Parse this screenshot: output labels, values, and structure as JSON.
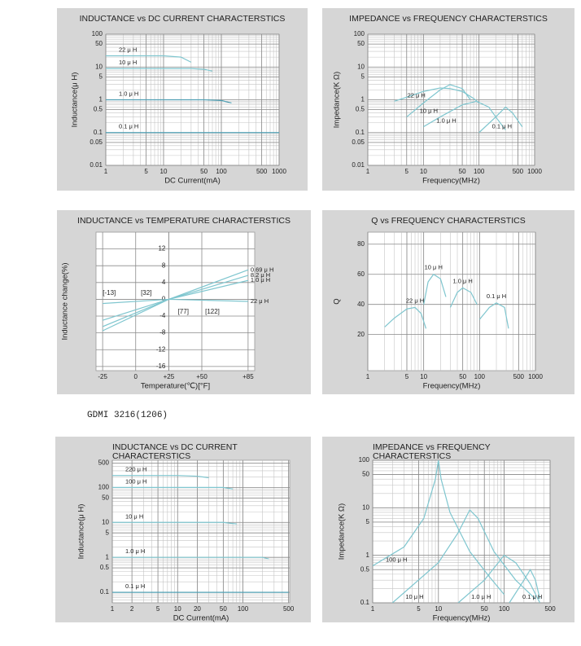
{
  "caption": "GDMI 3216(1206)",
  "chart_data": [
    {
      "type": "line",
      "title": "INDUCTANCE vs DC CURRENT CHARACTERSTICS",
      "xlabel": "DC Current(mA)",
      "ylabel": "Inductance(μ H)",
      "xscale": "log",
      "yscale": "log",
      "xlim": [
        1,
        1000
      ],
      "ylim": [
        0.01,
        100
      ],
      "xticks": [
        1,
        5,
        10,
        50,
        100,
        500,
        1000
      ],
      "yticks": [
        0.01,
        0.05,
        0.1,
        0.5,
        1,
        5,
        10,
        50,
        100
      ],
      "grid": true,
      "legend": "line-start",
      "series": [
        {
          "name": "22 μ H",
          "color": "#7fc6cf",
          "x": [
            1,
            5,
            10,
            20,
            30
          ],
          "values": [
            22,
            22,
            22,
            20,
            14
          ]
        },
        {
          "name": "10 μ H",
          "color": "#7fc6cf",
          "x": [
            1,
            10,
            30,
            50,
            70
          ],
          "values": [
            9,
            9,
            9,
            8.5,
            7.5
          ]
        },
        {
          "name": "1.0 μ H",
          "color": "#4f9fb3",
          "x": [
            1,
            50,
            100,
            150
          ],
          "values": [
            1,
            1,
            0.95,
            0.8
          ]
        },
        {
          "name": "0.1 μ H",
          "color": "#4f9fb3",
          "x": [
            1,
            1000
          ],
          "values": [
            0.1,
            0.1
          ]
        }
      ]
    },
    {
      "type": "line",
      "title": "IMPEDANCE vs FREQUENCY CHARACTERSTICS",
      "xlabel": "Frequency(MHz)",
      "ylabel": "Impedance(K Ω)",
      "xscale": "log",
      "yscale": "log",
      "xlim": [
        1,
        1000
      ],
      "ylim": [
        0.01,
        100
      ],
      "xticks": [
        1,
        5,
        10,
        50,
        100,
        500,
        1000
      ],
      "yticks": [
        0.01,
        0.05,
        0.1,
        0.5,
        1,
        5,
        10,
        50,
        100
      ],
      "grid": true,
      "legend": "line-start",
      "series": [
        {
          "name": "22 μ H",
          "color": "#7fc6cf",
          "x": [
            3,
            5,
            10,
            20,
            30,
            50,
            80,
            100
          ],
          "values": [
            0.9,
            1.2,
            1.8,
            2.3,
            2.2,
            1.8,
            1.1,
            0.8
          ]
        },
        {
          "name": "10 μ H",
          "color": "#7fc6cf",
          "x": [
            5,
            10,
            20,
            30,
            50,
            70
          ],
          "values": [
            0.3,
            0.8,
            2,
            2.9,
            2.2,
            1
          ]
        },
        {
          "name": "1.0 μ H",
          "color": "#7fc6cf",
          "x": [
            10,
            20,
            50,
            90,
            150,
            200,
            300
          ],
          "values": [
            0.15,
            0.3,
            0.7,
            0.9,
            0.6,
            0.3,
            0.12
          ]
        },
        {
          "name": "0.1 μ H",
          "color": "#7fc6cf",
          "x": [
            100,
            200,
            300,
            400,
            600
          ],
          "values": [
            0.1,
            0.3,
            0.6,
            0.4,
            0.15
          ]
        }
      ]
    },
    {
      "type": "line",
      "title": "INDUCTANCE vs TEMPERATURE CHARACTERSTICS",
      "xlabel": "Temperature(℃)[°F]",
      "ylabel": "Inductance change(%)",
      "xscale": "linear",
      "yscale": "linear",
      "xlim": [
        -30,
        90
      ],
      "ylim": [
        -17,
        16
      ],
      "xticks": [
        -25,
        0,
        {
          "value": 25,
          "label": "+25"
        },
        {
          "value": 50,
          "label": "+50"
        },
        {
          "value": 85,
          "label": "+85"
        }
      ],
      "yticks": [
        12,
        8,
        4,
        0,
        -4,
        -8,
        -12,
        -16
      ],
      "grid": true,
      "legend": "line-end",
      "annotations": [
        {
          "text": "[-13]",
          "x": -20,
          "y": 1.5
        },
        {
          "text": "[32]",
          "x": 8,
          "y": 1.5
        },
        {
          "text": "[77]",
          "x": 36,
          "y": -3
        },
        {
          "text": "[122]",
          "x": 58,
          "y": -3
        }
      ],
      "series": [
        {
          "name": "0.69 μ H",
          "color": "#7fc6cf",
          "x": [
            -25,
            25,
            85
          ],
          "values": [
            -7.5,
            0,
            7
          ]
        },
        {
          "name": "8.2 μ H",
          "color": "#7fc6cf",
          "x": [
            -25,
            25,
            85
          ],
          "values": [
            -6.5,
            0,
            5.7
          ]
        },
        {
          "name": "1.0 μ H",
          "color": "#7fc6cf",
          "x": [
            -25,
            25,
            85
          ],
          "values": [
            -5,
            0,
            4.5
          ]
        },
        {
          "name": "22 μ H",
          "color": "#7fc6cf",
          "x": [
            -25,
            25,
            85
          ],
          "values": [
            -1,
            0,
            -0.5
          ]
        }
      ]
    },
    {
      "type": "line",
      "title": "Q vs FREQUENCY CHARACTERSTICS",
      "xlabel": "Frequency(MHz)",
      "ylabel": "Q",
      "xscale": "log",
      "yscale": "linear",
      "xlim": [
        1,
        1000
      ],
      "ylim": [
        -4,
        88
      ],
      "xticks": [
        1,
        5,
        10,
        50,
        100,
        500,
        1000
      ],
      "yticks": [
        20,
        40,
        60,
        80
      ],
      "grid": true,
      "legend": "peak",
      "series": [
        {
          "name": "22 μ H",
          "color": "#7fc6cf",
          "x": [
            2,
            3,
            5,
            7,
            9,
            11
          ],
          "values": [
            25,
            31,
            37,
            38,
            34,
            24
          ]
        },
        {
          "name": "10 μ H",
          "color": "#7fc6cf",
          "x": [
            10,
            12,
            15,
            20,
            25
          ],
          "values": [
            40,
            55,
            60,
            57,
            45
          ]
        },
        {
          "name": "1.0 μ H",
          "color": "#7fc6cf",
          "x": [
            30,
            40,
            50,
            70,
            90
          ],
          "values": [
            38,
            48,
            51,
            48,
            40
          ]
        },
        {
          "name": "0.1 μ H",
          "color": "#7fc6cf",
          "x": [
            100,
            150,
            200,
            280,
            330
          ],
          "values": [
            30,
            38,
            41,
            38,
            24
          ]
        }
      ]
    },
    {
      "type": "line",
      "title": "INDUCTANCE vs DC CURRENT CHARACTERSTICS",
      "xlabel": "DC Current(mA)",
      "ylabel": "Inductance(μ H)",
      "xscale": "log",
      "yscale": "log",
      "xlim": [
        1,
        520
      ],
      "ylim": [
        0.05,
        600
      ],
      "xticks": [
        1,
        2,
        5,
        10,
        20,
        50,
        100,
        500
      ],
      "yticks": [
        0.1,
        0.5,
        1,
        5,
        10,
        50,
        100,
        500
      ],
      "grid": true,
      "legend": "line-start",
      "series": [
        {
          "name": "220 μ H",
          "color": "#7fc6cf",
          "x": [
            1,
            10,
            20,
            30
          ],
          "values": [
            220,
            220,
            210,
            190
          ]
        },
        {
          "name": "100 μ H",
          "color": "#7fc6cf",
          "x": [
            1,
            50,
            70
          ],
          "values": [
            100,
            100,
            90
          ]
        },
        {
          "name": "10 μ H",
          "color": "#7fc6cf",
          "x": [
            1,
            50,
            80
          ],
          "values": [
            10,
            10,
            9
          ]
        },
        {
          "name": "1.0 μ H",
          "color": "#7fc6cf",
          "x": [
            1,
            200,
            250
          ],
          "values": [
            1,
            1,
            0.9
          ]
        },
        {
          "name": "0.1 μ H",
          "color": "#4f9fb3",
          "x": [
            1,
            500
          ],
          "values": [
            0.1,
            0.1
          ]
        }
      ]
    },
    {
      "type": "line",
      "title": "IMPEDANCE vs FREQUENCY CHARACTERSTICS",
      "xlabel": "Frequency(MHz)",
      "ylabel": "Impedance(K Ω)",
      "xscale": "log",
      "yscale": "log",
      "xlim": [
        1,
        500
      ],
      "ylim": [
        0.1,
        100
      ],
      "xticks": [
        1,
        5,
        10,
        50,
        100,
        500
      ],
      "yticks": [
        0.1,
        0.5,
        1,
        5,
        10,
        50,
        100
      ],
      "grid": true,
      "legend": "line-start",
      "series": [
        {
          "name": "100 μ H",
          "color": "#7fc6cf",
          "x": [
            1,
            3,
            6,
            9,
            10,
            11,
            15,
            30,
            60,
            100
          ],
          "values": [
            0.6,
            1.5,
            6,
            40,
            100,
            40,
            8,
            1.2,
            0.35,
            0.15
          ]
        },
        {
          "name": "10 μ H",
          "color": "#7fc6cf",
          "x": [
            2,
            10,
            20,
            30,
            40,
            70,
            150,
            300
          ],
          "values": [
            0.1,
            0.7,
            3,
            9,
            6,
            1.2,
            0.3,
            0.12
          ]
        },
        {
          "name": "1.0 μ H",
          "color": "#7fc6cf",
          "x": [
            20,
            50,
            100,
            150,
            250,
            350
          ],
          "values": [
            0.1,
            0.3,
            1,
            0.7,
            0.25,
            0.1
          ]
        },
        {
          "name": "0.1 μ H",
          "color": "#7fc6cf",
          "x": [
            120,
            200,
            250,
            300,
            350
          ],
          "values": [
            0.1,
            0.3,
            0.5,
            0.3,
            0.12
          ]
        }
      ]
    }
  ]
}
